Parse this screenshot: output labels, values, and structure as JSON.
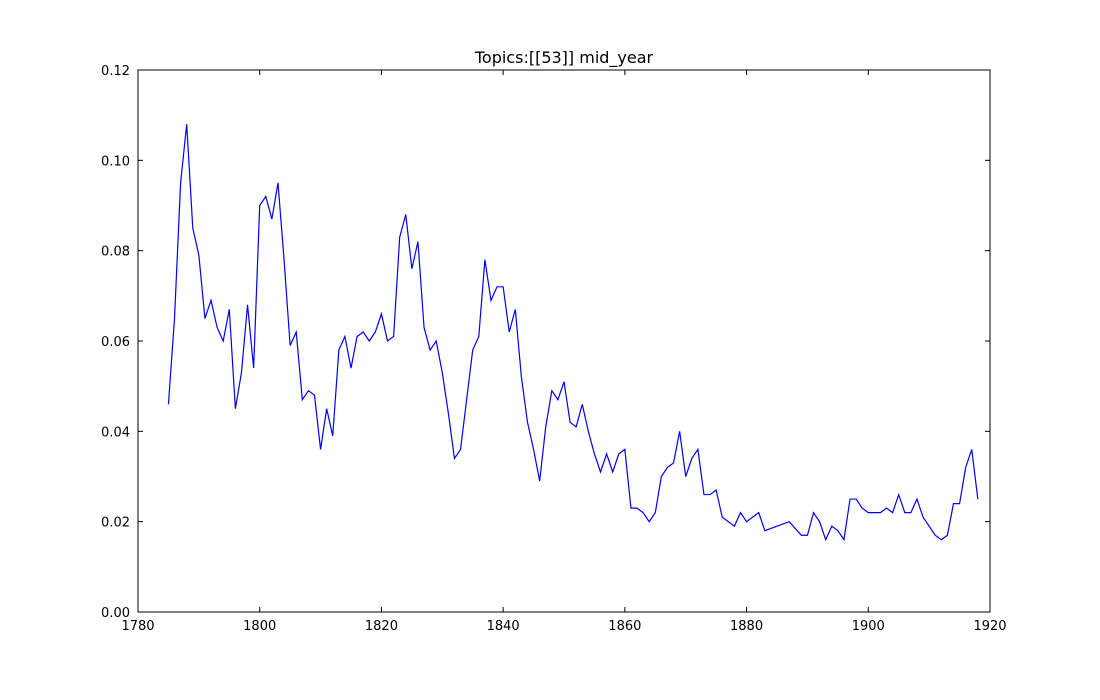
{
  "chart_data": {
    "type": "line",
    "title": "Topics:[[53]] mid_year",
    "xlabel": "",
    "ylabel": "",
    "xlim": [
      1780,
      1920
    ],
    "ylim": [
      0.0,
      0.12
    ],
    "x_ticks": [
      1780,
      1800,
      1820,
      1840,
      1860,
      1880,
      1900,
      1920
    ],
    "y_ticks": [
      "0.00",
      "0.02",
      "0.04",
      "0.06",
      "0.08",
      "0.10",
      "0.12"
    ],
    "grid": false,
    "legend": "none",
    "series": [
      {
        "color": "#0000ff",
        "x": [
          1785,
          1786,
          1787,
          1788,
          1789,
          1790,
          1791,
          1792,
          1793,
          1794,
          1795,
          1796,
          1797,
          1798,
          1799,
          1800,
          1801,
          1802,
          1803,
          1804,
          1805,
          1806,
          1807,
          1808,
          1809,
          1810,
          1811,
          1812,
          1813,
          1814,
          1815,
          1816,
          1817,
          1818,
          1819,
          1820,
          1821,
          1822,
          1823,
          1824,
          1825,
          1826,
          1827,
          1828,
          1829,
          1830,
          1831,
          1832,
          1833,
          1834,
          1835,
          1836,
          1837,
          1838,
          1839,
          1840,
          1841,
          1842,
          1843,
          1844,
          1845,
          1846,
          1847,
          1848,
          1849,
          1850,
          1851,
          1852,
          1853,
          1854,
          1855,
          1856,
          1857,
          1858,
          1859,
          1860,
          1861,
          1862,
          1863,
          1864,
          1865,
          1866,
          1867,
          1868,
          1869,
          1870,
          1871,
          1872,
          1873,
          1874,
          1875,
          1876,
          1877,
          1878,
          1879,
          1880,
          1881,
          1882,
          1883,
          1887,
          1889,
          1890,
          1891,
          1892,
          1893,
          1894,
          1895,
          1896,
          1897,
          1898,
          1899,
          1900,
          1901,
          1902,
          1903,
          1904,
          1905,
          1906,
          1907,
          1908,
          1909,
          1910,
          1911,
          1912,
          1913,
          1914,
          1915,
          1916,
          1917,
          1918
        ],
        "y": [
          0.046,
          0.065,
          0.095,
          0.108,
          0.085,
          0.079,
          0.065,
          0.069,
          0.063,
          0.06,
          0.067,
          0.045,
          0.053,
          0.068,
          0.054,
          0.09,
          0.092,
          0.087,
          0.095,
          0.078,
          0.059,
          0.062,
          0.047,
          0.049,
          0.048,
          0.036,
          0.045,
          0.039,
          0.058,
          0.061,
          0.054,
          0.061,
          0.062,
          0.06,
          0.062,
          0.066,
          0.06,
          0.061,
          0.083,
          0.088,
          0.076,
          0.082,
          0.063,
          0.058,
          0.06,
          0.053,
          0.044,
          0.034,
          0.036,
          0.047,
          0.058,
          0.061,
          0.078,
          0.069,
          0.072,
          0.072,
          0.062,
          0.067,
          0.052,
          0.042,
          0.036,
          0.029,
          0.041,
          0.049,
          0.047,
          0.051,
          0.042,
          0.041,
          0.046,
          0.04,
          0.035,
          0.031,
          0.035,
          0.031,
          0.035,
          0.036,
          0.023,
          0.023,
          0.022,
          0.02,
          0.022,
          0.03,
          0.032,
          0.033,
          0.04,
          0.03,
          0.034,
          0.036,
          0.026,
          0.026,
          0.027,
          0.021,
          0.02,
          0.019,
          0.022,
          0.02,
          0.021,
          0.022,
          0.018,
          0.02,
          0.017,
          0.017,
          0.022,
          0.02,
          0.016,
          0.019,
          0.018,
          0.016,
          0.025,
          0.025,
          0.023,
          0.022,
          0.022,
          0.022,
          0.023,
          0.022,
          0.026,
          0.022,
          0.022,
          0.025,
          0.021,
          0.019,
          0.017,
          0.016,
          0.017,
          0.024,
          0.024,
          0.032,
          0.036,
          0.025
        ]
      }
    ]
  }
}
